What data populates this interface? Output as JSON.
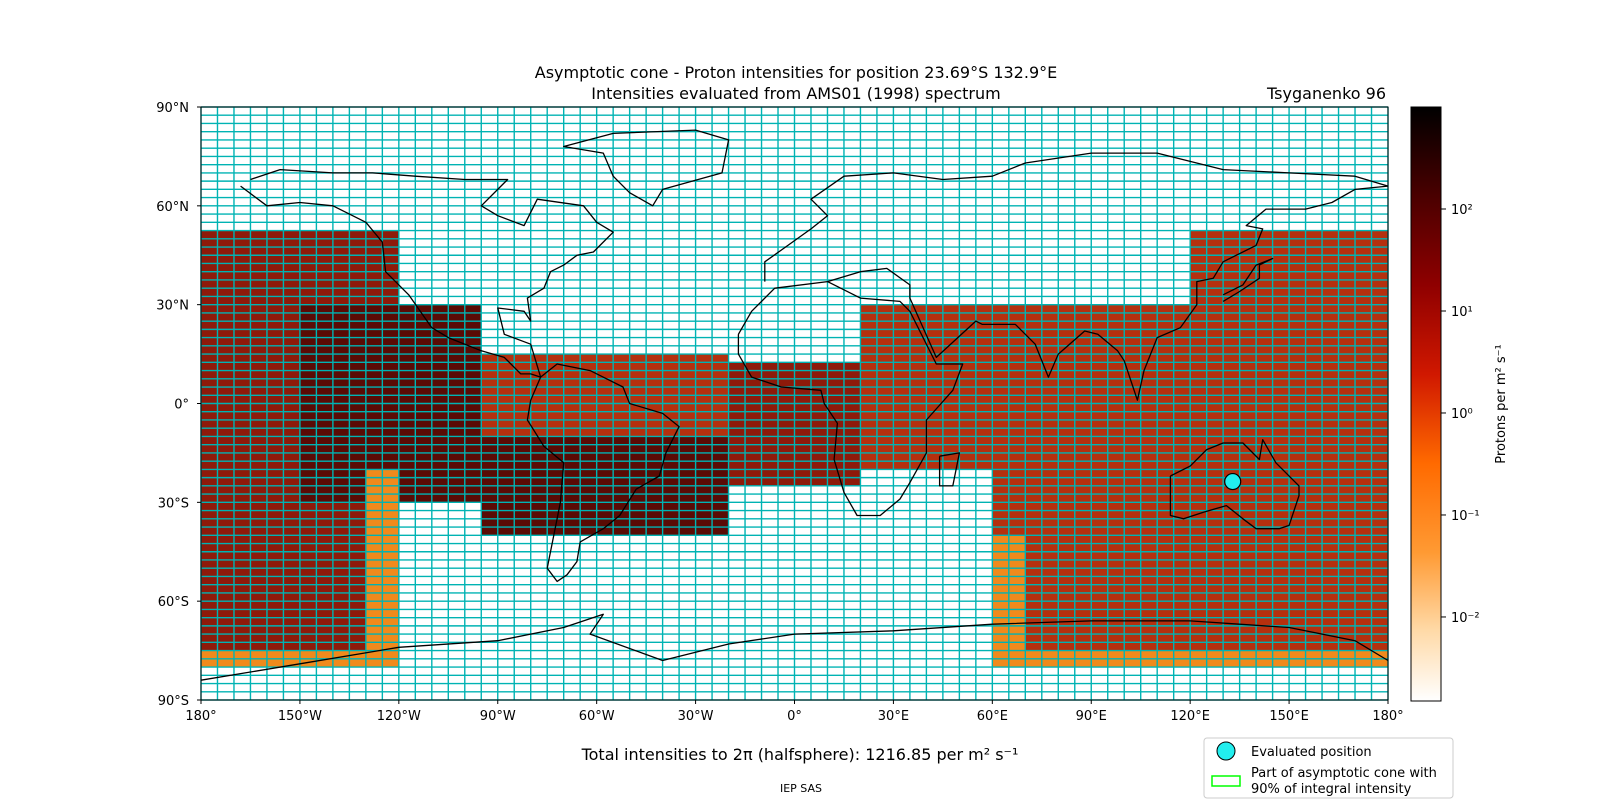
{
  "title": {
    "line1": "Asymptotic cone - Proton intensities for position 23.69°S 132.9°E",
    "line2": "Intensities evaluated from AMS01 (1998) spectrum",
    "model": "Tsyganenko 96"
  },
  "map": {
    "projection": "equirectangular",
    "lon_range": [
      -180,
      180
    ],
    "lat_range": [
      -90,
      90
    ],
    "grid_step_lon": 5,
    "grid_step_lat": 2.5,
    "grid_color": "#00b3b3",
    "x_ticks": [
      -180,
      -150,
      -120,
      -90,
      -60,
      -30,
      0,
      30,
      60,
      90,
      120,
      150,
      180
    ],
    "y_ticks": [
      90,
      60,
      30,
      0,
      -30,
      -60,
      -90
    ],
    "x_tick_labels": [
      "180°",
      "150°W",
      "120°W",
      "90°W",
      "60°W",
      "30°W",
      "0°",
      "30°E",
      "60°E",
      "90°E",
      "120°E",
      "150°E",
      "180°"
    ],
    "y_tick_labels": [
      "90°N",
      "60°N",
      "30°N",
      "0°",
      "30°S",
      "60°S",
      "90°S"
    ]
  },
  "evaluated_position": {
    "lat": -23.69,
    "lon": 132.9,
    "color": "#22eeee"
  },
  "colorbar": {
    "label": "Protons per m² s⁻¹",
    "scale": "log",
    "range": [
      0.0015,
      1000
    ],
    "tick_values": [
      0.01,
      0.1,
      1,
      10,
      100
    ],
    "tick_labels": [
      "10⁻²",
      "10⁻¹",
      "10⁰",
      "10¹",
      "10²"
    ],
    "colormap": "gist_heat_r"
  },
  "footer": {
    "total": "Total intensities to 2π (halfsphere): 1216.85 per m² s⁻¹",
    "credit": "IEP SAS"
  },
  "legend": {
    "items": [
      {
        "label": "Evaluated position",
        "color": "#22eeee"
      },
      {
        "label": "Part of asymptotic cone with",
        "label2": "90% of integral intensity",
        "color": "#00ff00"
      }
    ]
  }
}
